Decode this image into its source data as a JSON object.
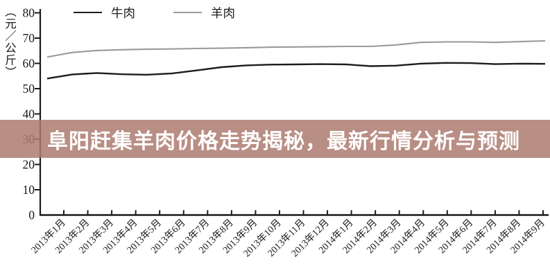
{
  "banner": {
    "text": "阜阳赶集羊肉价格走势揭秘，最新行情分析与预测",
    "bg_color": "#ad7a6f",
    "bg_opacity": 0.85,
    "text_color": "#ffffff"
  },
  "legend": {
    "items": [
      {
        "label": "牛肉",
        "color": "#1c1c1c"
      },
      {
        "label": "羊肉",
        "color": "#9a9a9a"
      }
    ],
    "position": "top"
  },
  "y_axis": {
    "unit_label": "（元／公斤）",
    "tick_labels": [
      "0",
      "10",
      "20",
      "30",
      "40",
      "50",
      "60",
      "70",
      "80"
    ]
  },
  "chart_data": {
    "type": "line",
    "title": "",
    "xlabel": "",
    "ylabel": "（元／公斤）",
    "ylim": [
      0,
      80
    ],
    "y_tick_step": 10,
    "grid": false,
    "legend_position": "top",
    "axis_color": "#1a1a1a",
    "categories": [
      "2013年1月",
      "2013年2月",
      "2013年3月",
      "2013年4月",
      "2013年5月",
      "2013年6月",
      "2013年7月",
      "2013年8月",
      "2013年9月",
      "2013年10月",
      "2013年11月",
      "2013年12月",
      "2014年1月",
      "2014年2月",
      "2014年3月",
      "2014年4月",
      "2014年5月",
      "2014年6月",
      "2014年7月",
      "2014年8月",
      "2014年9月"
    ],
    "series": [
      {
        "name": "牛肉",
        "color": "#1c1c1c",
        "values": [
          54.0,
          55.6,
          56.2,
          55.7,
          55.5,
          56.0,
          57.2,
          58.5,
          59.2,
          59.5,
          59.6,
          59.7,
          59.6,
          58.9,
          59.1,
          59.9,
          60.2,
          60.1,
          59.7,
          59.9,
          59.8
        ]
      },
      {
        "name": "羊肉",
        "color": "#9a9a9a",
        "values": [
          62.5,
          64.3,
          65.1,
          65.4,
          65.6,
          65.7,
          65.9,
          66.0,
          66.2,
          66.4,
          66.5,
          66.6,
          66.7,
          66.7,
          67.3,
          68.3,
          68.5,
          68.5,
          68.3,
          68.6,
          68.9
        ]
      }
    ]
  }
}
